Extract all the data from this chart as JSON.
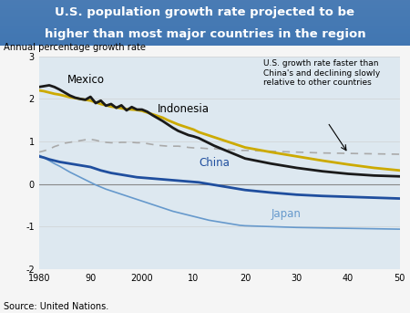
{
  "title_line1": "U.S. population growth rate projected to be",
  "title_line2": "higher than most major countries in the region",
  "title_bg_top": "#4477bb",
  "title_bg_bot": "#3366aa",
  "title_text_color": "#ffffff",
  "ylabel": "Annual percentage growth rate",
  "source": "Source: United Nations.",
  "chart_bg_color": "#dde8f0",
  "ylim": [
    -2,
    3
  ],
  "annotation_text": "U.S. growth rate faster than\nChina's and declining slowly\nrelative to other countries",
  "x_ticks": [
    1980,
    1990,
    2000,
    2010,
    2020,
    2030,
    2040,
    2050
  ],
  "x_tick_labels": [
    "1980",
    "90",
    "2000",
    "10",
    "20",
    "30",
    "40",
    "50"
  ],
  "years": [
    1980,
    1981,
    1982,
    1983,
    1984,
    1985,
    1986,
    1987,
    1988,
    1989,
    1990,
    1991,
    1992,
    1993,
    1994,
    1995,
    1996,
    1997,
    1998,
    1999,
    2000,
    2001,
    2002,
    2003,
    2004,
    2005,
    2006,
    2007,
    2008,
    2009,
    2010,
    2011,
    2012,
    2013,
    2014,
    2015,
    2016,
    2017,
    2018,
    2019,
    2020,
    2025,
    2030,
    2035,
    2040,
    2045,
    2050
  ],
  "mexico": [
    2.28,
    2.3,
    2.32,
    2.28,
    2.22,
    2.15,
    2.08,
    2.03,
    2.0,
    1.98,
    2.0,
    1.95,
    1.92,
    1.88,
    1.85,
    1.82,
    1.8,
    1.78,
    1.78,
    1.77,
    1.75,
    1.7,
    1.62,
    1.55,
    1.48,
    1.4,
    1.32,
    1.25,
    1.2,
    1.15,
    1.12,
    1.08,
    1.02,
    0.96,
    0.9,
    0.85,
    0.8,
    0.75,
    0.7,
    0.65,
    0.6,
    0.48,
    0.38,
    0.3,
    0.24,
    0.2,
    0.18
  ],
  "indonesia": [
    2.2,
    2.18,
    2.15,
    2.12,
    2.1,
    2.07,
    2.04,
    2.02,
    2.0,
    1.98,
    1.96,
    1.92,
    1.88,
    1.85,
    1.82,
    1.8,
    1.78,
    1.76,
    1.75,
    1.74,
    1.72,
    1.68,
    1.64,
    1.6,
    1.56,
    1.5,
    1.45,
    1.4,
    1.36,
    1.32,
    1.28,
    1.22,
    1.18,
    1.14,
    1.1,
    1.06,
    1.02,
    0.98,
    0.94,
    0.9,
    0.86,
    0.75,
    0.65,
    0.55,
    0.46,
    0.38,
    0.32
  ],
  "us": [
    0.75,
    0.78,
    0.82,
    0.88,
    0.92,
    0.96,
    0.98,
    1.0,
    1.02,
    1.04,
    1.05,
    1.03,
    1.0,
    0.98,
    0.97,
    0.97,
    0.98,
    0.98,
    0.98,
    0.97,
    0.97,
    0.95,
    0.93,
    0.91,
    0.9,
    0.89,
    0.89,
    0.89,
    0.88,
    0.86,
    0.85,
    0.85,
    0.84,
    0.83,
    0.83,
    0.82,
    0.82,
    0.81,
    0.8,
    0.79,
    0.79,
    0.77,
    0.75,
    0.73,
    0.72,
    0.71,
    0.7
  ],
  "china": [
    0.65,
    0.62,
    0.58,
    0.55,
    0.52,
    0.5,
    0.48,
    0.46,
    0.44,
    0.42,
    0.4,
    0.36,
    0.32,
    0.29,
    0.26,
    0.24,
    0.22,
    0.2,
    0.18,
    0.16,
    0.15,
    0.14,
    0.13,
    0.12,
    0.11,
    0.1,
    0.09,
    0.08,
    0.07,
    0.06,
    0.05,
    0.04,
    0.02,
    0.0,
    -0.02,
    -0.04,
    -0.06,
    -0.08,
    -0.1,
    -0.12,
    -0.14,
    -0.2,
    -0.25,
    -0.28,
    -0.3,
    -0.32,
    -0.34
  ],
  "japan": [
    0.68,
    0.62,
    0.55,
    0.48,
    0.42,
    0.35,
    0.28,
    0.22,
    0.16,
    0.1,
    0.04,
    -0.02,
    -0.07,
    -0.12,
    -0.16,
    -0.2,
    -0.24,
    -0.28,
    -0.32,
    -0.36,
    -0.4,
    -0.44,
    -0.48,
    -0.52,
    -0.56,
    -0.6,
    -0.64,
    -0.67,
    -0.7,
    -0.73,
    -0.76,
    -0.79,
    -0.82,
    -0.85,
    -0.87,
    -0.89,
    -0.91,
    -0.93,
    -0.95,
    -0.97,
    -0.98,
    -1.0,
    -1.02,
    -1.03,
    -1.04,
    -1.05,
    -1.06
  ],
  "mexico_color": "#1a1a1a",
  "indonesia_color": "#ccaa00",
  "us_color": "#aaaaaa",
  "china_color": "#1f4e9e",
  "japan_color": "#6699cc",
  "mexico_lw": 2.0,
  "indonesia_lw": 2.0,
  "us_lw": 1.2,
  "china_lw": 2.0,
  "japan_lw": 1.2,
  "us_linestyle": "--"
}
